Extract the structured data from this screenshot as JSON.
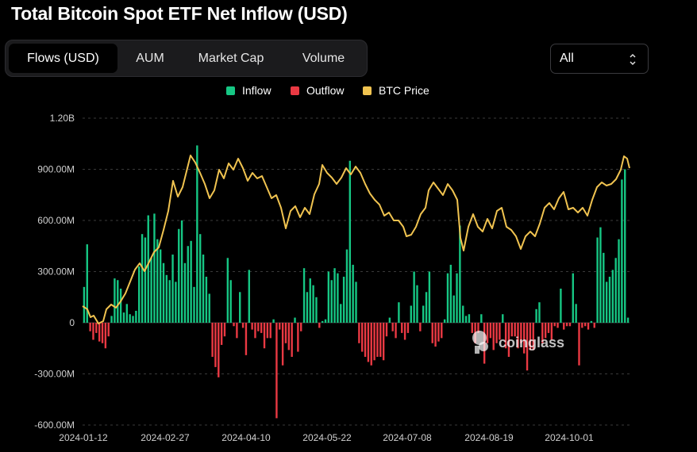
{
  "title": "Total Bitcoin Spot ETF Net Inflow (USD)",
  "tabs": [
    {
      "label": "Flows (USD)",
      "active": true
    },
    {
      "label": "AUM",
      "active": false
    },
    {
      "label": "Market Cap",
      "active": false
    },
    {
      "label": "Volume",
      "active": false
    }
  ],
  "range_select": {
    "value": "All"
  },
  "legend": [
    {
      "label": "Inflow",
      "color": "#16c784"
    },
    {
      "label": "Outflow",
      "color": "#ea3943"
    },
    {
      "label": "BTC Price",
      "color": "#f0c350"
    }
  ],
  "watermark": "coinglass",
  "chart_data": {
    "type": "bar",
    "title": "Total Bitcoin Spot ETF Net Inflow (USD)",
    "y_ticks": [
      "1.20B",
      "900.00M",
      "600.00M",
      "300.00M",
      "0",
      "-300.00M",
      "-600.00M"
    ],
    "ylim": [
      -600000000,
      1200000000
    ],
    "x_tick_labels": [
      "2024-01-12",
      "2024-02-27",
      "2024-04-10",
      "2024-05-22",
      "2024-07-08",
      "2024-08-19",
      "2024-10-01"
    ],
    "grid": true,
    "legend_position": "top-center",
    "series": [
      {
        "name": "Inflow",
        "color": "#16c784",
        "role": "positive net flows (USD)"
      },
      {
        "name": "Outflow",
        "color": "#ea3943",
        "role": "negative net flows (USD)"
      },
      {
        "name": "BTC Price",
        "color": "#f0c350",
        "type": "line"
      }
    ],
    "net_flows_musd": [
      210,
      460,
      -50,
      -100,
      -60,
      -110,
      -120,
      -150,
      -80,
      40,
      260,
      250,
      200,
      60,
      110,
      50,
      40,
      70,
      330,
      520,
      500,
      630,
      380,
      640,
      490,
      430,
      350,
      280,
      250,
      400,
      240,
      550,
      600,
      350,
      450,
      480,
      210,
      1040,
      520,
      400,
      270,
      170,
      -200,
      -260,
      -320,
      -130,
      -80,
      380,
      250,
      -20,
      -90,
      180,
      -30,
      -190,
      310,
      -40,
      -90,
      -50,
      -60,
      -150,
      -90,
      -90,
      20,
      -560,
      -40,
      -250,
      -120,
      -160,
      -200,
      30,
      -170,
      -50,
      320,
      180,
      260,
      220,
      150,
      -30,
      10,
      20,
      300,
      250,
      320,
      290,
      110,
      270,
      430,
      950,
      340,
      240,
      -120,
      -170,
      -200,
      -230,
      -250,
      -220,
      -200,
      -200,
      -220,
      -80,
      30,
      -50,
      -90,
      120,
      -60,
      -100,
      -60,
      100,
      300,
      220,
      -50,
      100,
      180,
      300,
      -120,
      -140,
      -110,
      -90,
      20,
      290,
      340,
      160,
      290,
      570,
      100,
      40,
      50,
      -60,
      -120,
      -60,
      50,
      -240,
      -120,
      -90,
      -160,
      -120,
      -100,
      50,
      -150,
      -200,
      -80,
      -80,
      -150,
      -120,
      -180,
      -280,
      -160,
      -160,
      80,
      120,
      -120,
      -90,
      -60,
      -100,
      -20,
      -30,
      200,
      -40,
      -20,
      -20,
      290,
      110,
      -250,
      -30,
      -20,
      -40,
      10,
      -30,
      500,
      560,
      410,
      240,
      270,
      310,
      380,
      490,
      840,
      900,
      30
    ]
  }
}
